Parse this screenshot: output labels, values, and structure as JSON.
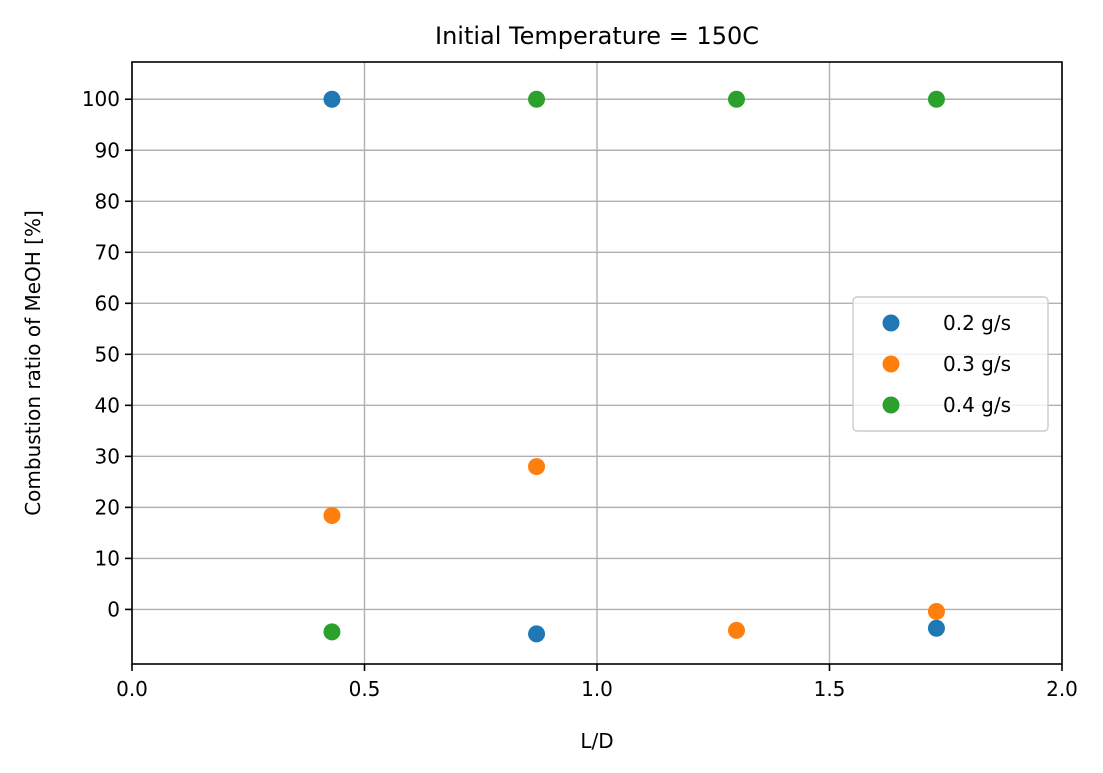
{
  "chart_data": {
    "type": "scatter",
    "title": "Initial Temperature = 150C",
    "xlabel": "L/D",
    "ylabel": "Combustion ratio of MeOH [%]",
    "xlim": [
      0.0,
      2.0
    ],
    "ylim": [
      -10.7,
      107.3
    ],
    "x_ticks": [
      "0.0",
      "0.5",
      "1.0",
      "1.5",
      "2.0"
    ],
    "y_ticks": [
      "0",
      "10",
      "20",
      "30",
      "40",
      "50",
      "60",
      "70",
      "80",
      "90",
      "100"
    ],
    "grid": true,
    "legend_position": "center-right",
    "series": [
      {
        "name": "0.2 g/s",
        "color": "#1f77b4",
        "points": [
          {
            "x": 0.43,
            "y": 100.0
          },
          {
            "x": 0.87,
            "y": -4.8
          },
          {
            "x": 1.73,
            "y": -3.7
          }
        ]
      },
      {
        "name": "0.3 g/s",
        "color": "#ff7f0e",
        "points": [
          {
            "x": 0.43,
            "y": 18.4
          },
          {
            "x": 0.87,
            "y": 28.0
          },
          {
            "x": 1.3,
            "y": -4.1
          },
          {
            "x": 1.73,
            "y": -0.4
          }
        ]
      },
      {
        "name": "0.4 g/s",
        "color": "#2ca02c",
        "points": [
          {
            "x": 0.43,
            "y": -4.4
          },
          {
            "x": 0.87,
            "y": 100.0
          },
          {
            "x": 1.3,
            "y": 100.0
          },
          {
            "x": 1.73,
            "y": 100.0
          }
        ]
      }
    ]
  }
}
